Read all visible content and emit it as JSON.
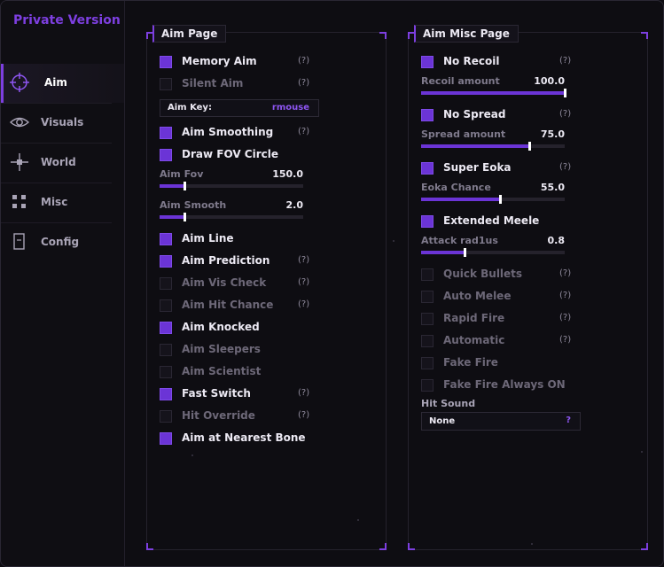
{
  "brand": "Private Version",
  "nav": [
    {
      "label": "Aim",
      "icon": "crosshair-icon",
      "active": true
    },
    {
      "label": "Visuals",
      "icon": "eye-icon"
    },
    {
      "label": "World",
      "icon": "world-icon"
    },
    {
      "label": "Misc",
      "icon": "grid-icon"
    },
    {
      "label": "Config",
      "icon": "file-icon"
    }
  ],
  "aim_page": {
    "title": "Aim Page",
    "items": [
      {
        "label": "Memory Aim",
        "checked": true,
        "help": "(?)"
      },
      {
        "label": "Silent Aim",
        "checked": false,
        "help": "(?)"
      },
      {
        "label": "Aim Smoothing",
        "checked": true,
        "help": "(?)"
      },
      {
        "label": "Draw FOV Circle",
        "checked": true,
        "help": ""
      },
      {
        "label": "Aim Line",
        "checked": true,
        "help": ""
      },
      {
        "label": "Aim Prediction",
        "checked": true,
        "help": "(?)"
      },
      {
        "label": "Aim Vis Check",
        "checked": false,
        "help": "(?)"
      },
      {
        "label": "Aim Hit Chance",
        "checked": false,
        "help": "(?)"
      },
      {
        "label": "Aim Knocked",
        "checked": true,
        "help": ""
      },
      {
        "label": "Aim Sleepers",
        "checked": false,
        "help": ""
      },
      {
        "label": "Aim Scientist",
        "checked": false,
        "help": ""
      },
      {
        "label": "Fast Switch",
        "checked": true,
        "help": "(?)"
      },
      {
        "label": "Hit Override",
        "checked": false,
        "help": "(?)"
      },
      {
        "label": "Aim at Nearest Bone",
        "checked": true,
        "help": ""
      }
    ],
    "aim_key_label": "Aim Key:",
    "aim_key_value": "rmouse",
    "sliders": [
      {
        "label": "Aim Fov",
        "value": "150.0",
        "fraction": 0.17
      },
      {
        "label": "Aim Smooth",
        "value": "2.0",
        "fraction": 0.17
      }
    ]
  },
  "misc_page": {
    "title": "Aim Misc Page",
    "items": [
      {
        "label": "No Recoil",
        "checked": true,
        "help": "(?)"
      },
      {
        "label": "No Spread",
        "checked": true,
        "help": "(?)"
      },
      {
        "label": "Super Eoka",
        "checked": true,
        "help": "(?)"
      },
      {
        "label": "Extended Meele",
        "checked": true,
        "help": ""
      },
      {
        "label": "Quick Bullets",
        "checked": false,
        "help": "(?)"
      },
      {
        "label": "Auto Melee",
        "checked": false,
        "help": "(?)"
      },
      {
        "label": "Rapid Fire",
        "checked": false,
        "help": "(?)"
      },
      {
        "label": "Automatic",
        "checked": false,
        "help": "(?)"
      },
      {
        "label": "Fake Fire",
        "checked": false,
        "help": ""
      },
      {
        "label": "Fake Fire Always ON",
        "checked": false,
        "help": ""
      }
    ],
    "sliders": [
      {
        "label": "Recoil amount",
        "value": "100.0",
        "fraction": 1.0
      },
      {
        "label": "Spread amount",
        "value": "75.0",
        "fraction": 0.75
      },
      {
        "label": "Eoka Chance",
        "value": "55.0",
        "fraction": 0.55
      },
      {
        "label": "Attack rad1us",
        "value": "0.8",
        "fraction": 0.3
      }
    ],
    "hit_sound_label": "Hit Sound",
    "hit_sound_value": "None",
    "hit_sound_help": "?"
  },
  "colors": {
    "accent": "#7d3fe0",
    "background": "#0e0d12"
  }
}
